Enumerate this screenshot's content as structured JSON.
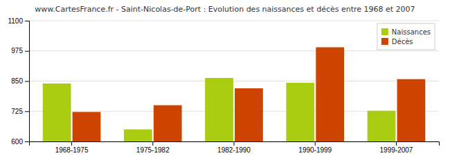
{
  "chart_data": {
    "type": "bar",
    "title": "www.CartesFrance.fr - Saint-Nicolas-de-Port : Evolution des naissances et décès entre 1968 et 2007",
    "categories": [
      "1968-1975",
      "1975-1982",
      "1982-1990",
      "1990-1999",
      "1999-2007"
    ],
    "series": [
      {
        "name": "Naissances",
        "color": "#aacc11",
        "values": [
          840,
          650,
          863,
          843,
          727
        ]
      },
      {
        "name": "Décès",
        "color": "#cc4400",
        "values": [
          722,
          750,
          820,
          990,
          858
        ]
      }
    ],
    "ylim": [
      600,
      1100
    ],
    "yticks": [
      600,
      725,
      850,
      975,
      1100
    ],
    "grid": true,
    "legend": "upper right"
  }
}
